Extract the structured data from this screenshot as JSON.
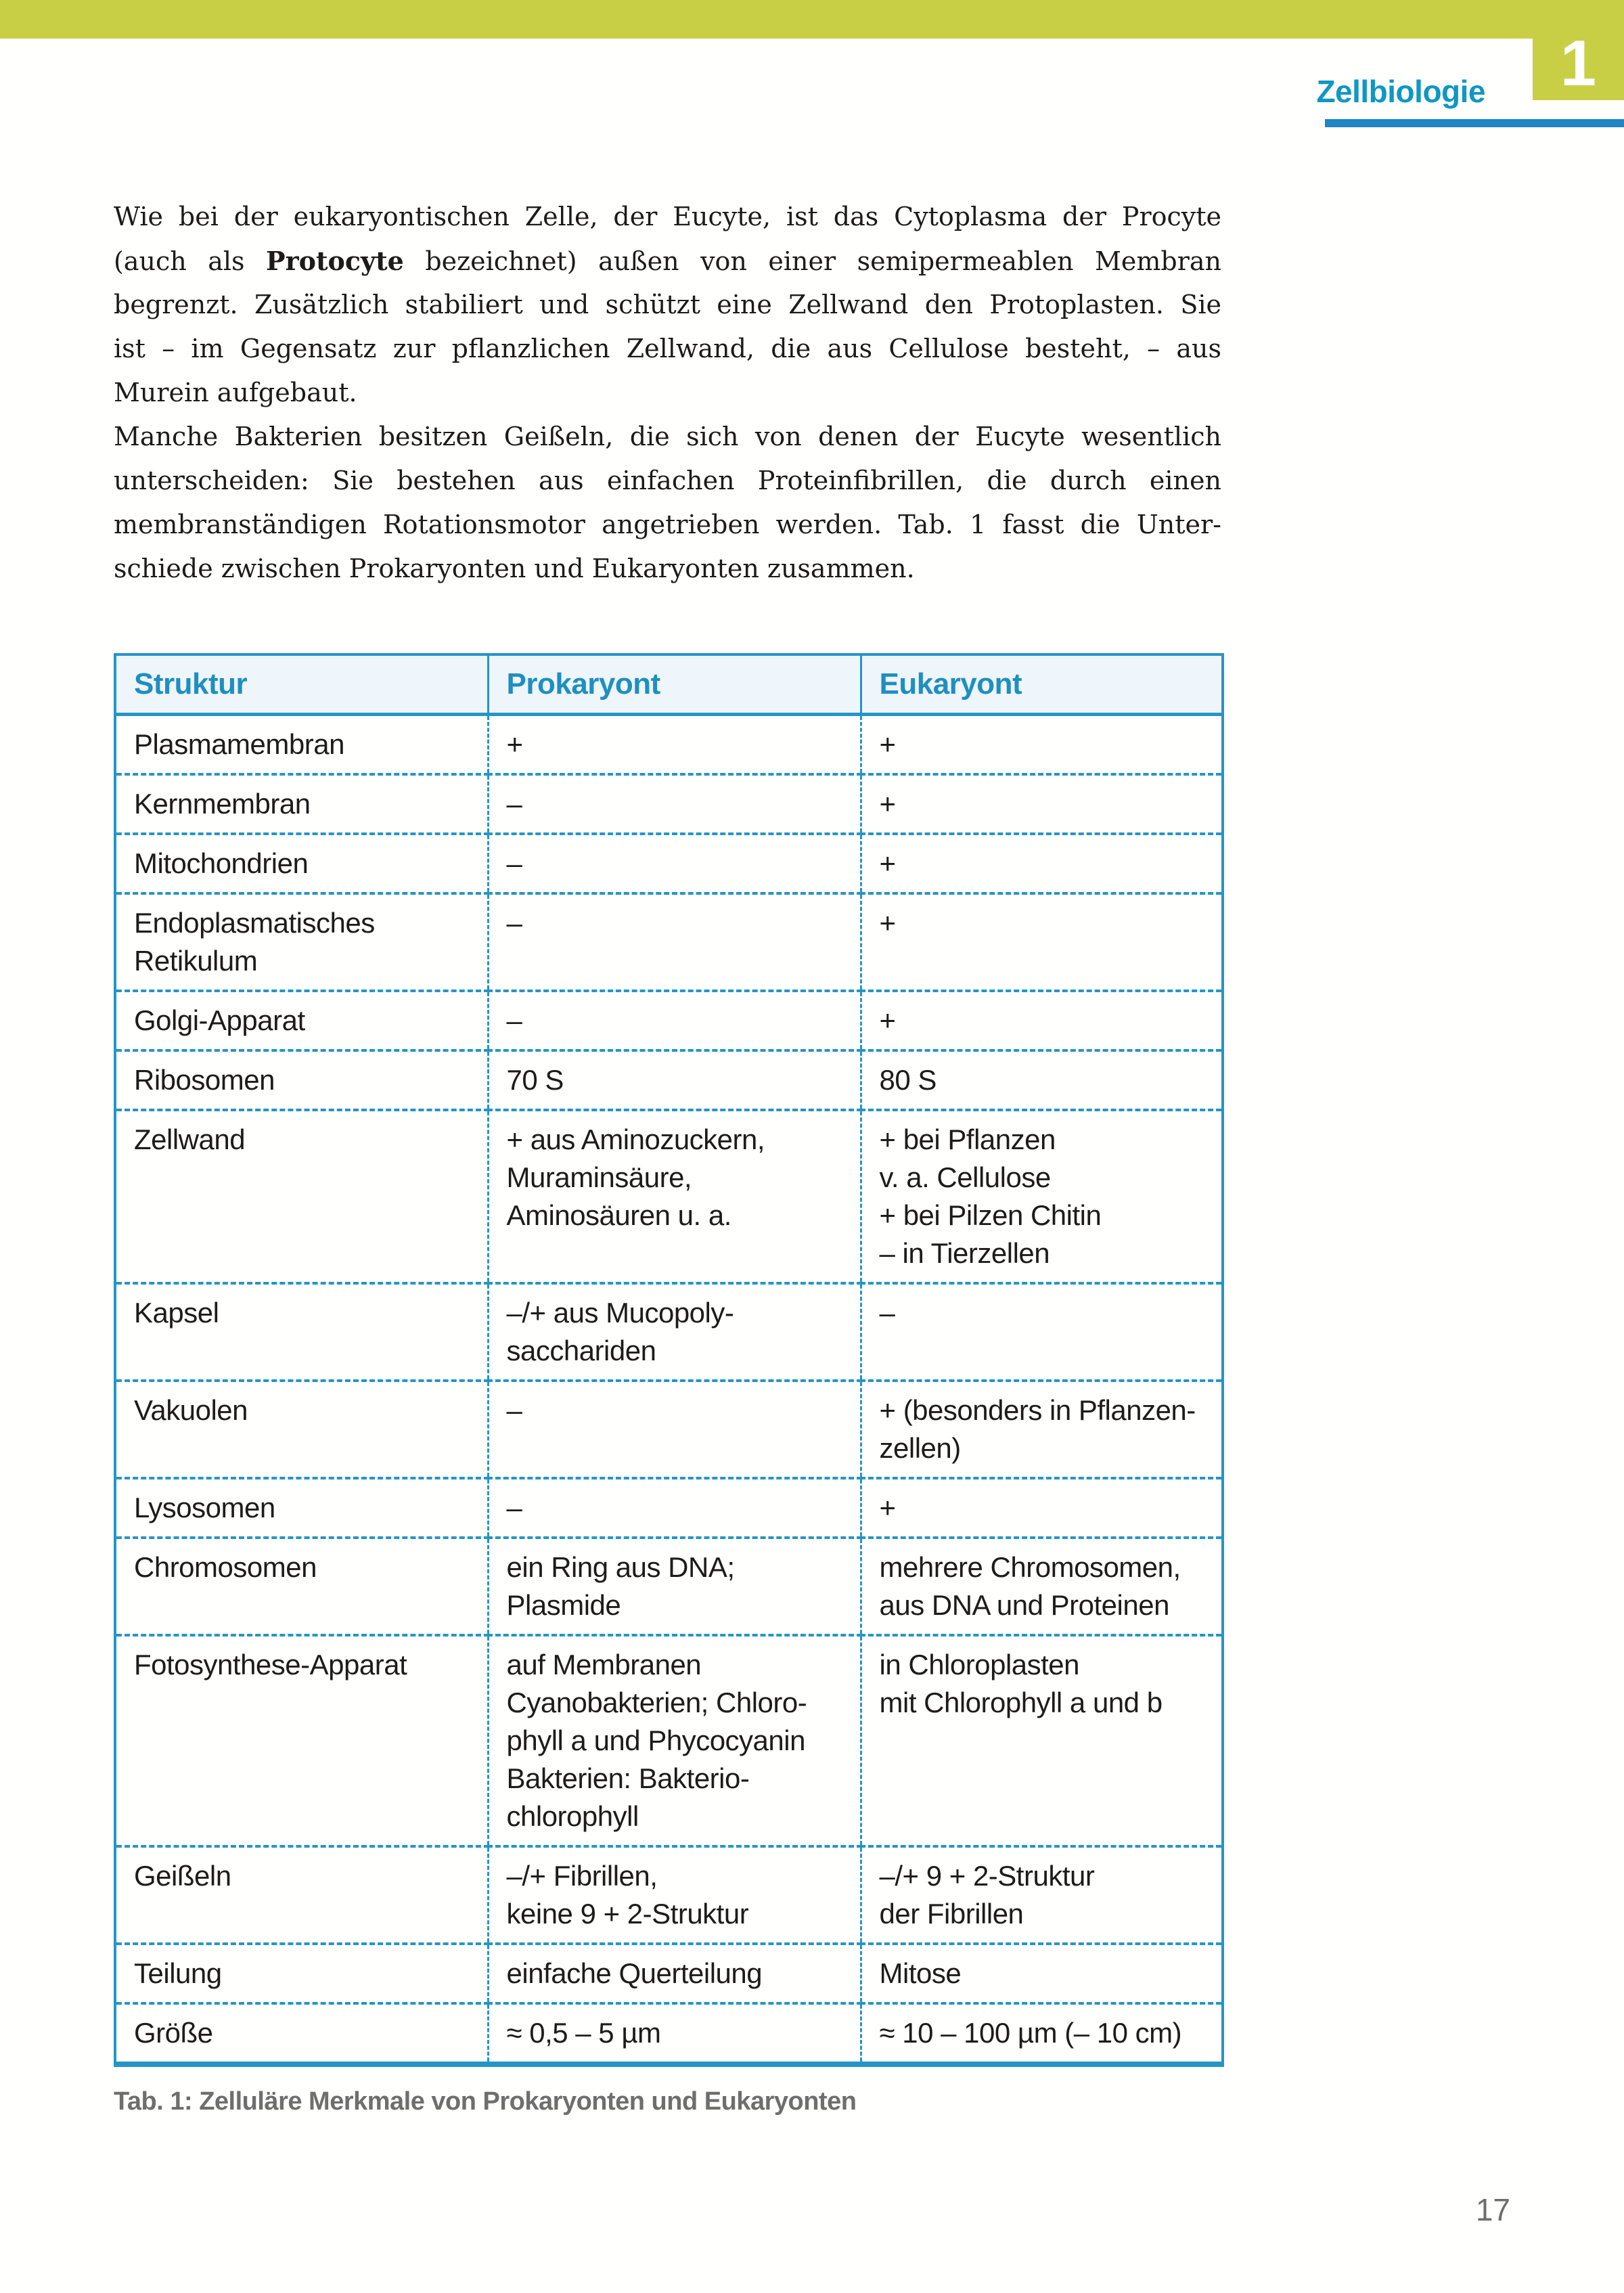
{
  "header": {
    "chapter_title": "Zellbiologie",
    "chapter_number": "1"
  },
  "paragraphs": [
    {
      "lines": [
        "Wie bei der eukaryontischen Zelle, der Eucyte, ist das Cytoplasma der Procyte",
        "(auch als **Protocyte** bezeichnet) außen von einer semipermeablen Membran",
        "begrenzt. Zusätzlich stabiliert und schützt eine Zellwand den Protoplasten. Sie",
        "ist – im Gegensatz zur pflanzlichen Zellwand, die aus Cellulose besteht, – aus",
        "Murein aufgebaut."
      ]
    },
    {
      "lines": [
        "Manche Bakterien besitzen Geißeln, die sich von denen der Eucyte wesentlich",
        "unterscheiden: Sie bestehen aus einfachen Proteinfibrillen, die durch einen",
        "membranständigen Rotationsmotor angetrieben werden. Tab. 1 fasst die Unter-",
        "schiede zwischen Prokaryonten und Eukaryonten zusammen."
      ]
    }
  ],
  "table": {
    "headers": [
      "Struktur",
      "Prokaryont",
      "Eukaryont"
    ],
    "rows": [
      {
        "struktur": "Plasmamembran",
        "prokaryont": "+",
        "eukaryont": "+"
      },
      {
        "struktur": "Kernmembran",
        "prokaryont": "–",
        "eukaryont": "+"
      },
      {
        "struktur": "Mitochondrien",
        "prokaryont": "–",
        "eukaryont": "+"
      },
      {
        "struktur": [
          "Endoplasmatisches",
          "Retikulum"
        ],
        "prokaryont": "–",
        "eukaryont": "+"
      },
      {
        "struktur": "Golgi-Apparat",
        "prokaryont": "–",
        "eukaryont": "+"
      },
      {
        "struktur": "Ribosomen",
        "prokaryont": "70 S",
        "eukaryont": "80 S"
      },
      {
        "struktur": "Zellwand",
        "prokaryont": [
          "+ aus Aminozuckern,",
          "Muraminsäure,",
          "Aminosäuren u. a."
        ],
        "eukaryont": [
          "+ bei Pflanzen",
          "v. a. Cellulose",
          "+ bei Pilzen Chitin",
          "– in Tierzellen"
        ]
      },
      {
        "struktur": "Kapsel",
        "prokaryont": [
          "–/+ aus Mucopoly-",
          "sacchariden"
        ],
        "eukaryont": "–"
      },
      {
        "struktur": "Vakuolen",
        "prokaryont": "–",
        "eukaryont": [
          "+ (besonders in Pflanzen-",
          "zellen)"
        ]
      },
      {
        "struktur": "Lysosomen",
        "prokaryont": "–",
        "eukaryont": "+"
      },
      {
        "struktur": "Chromosomen",
        "prokaryont": [
          "ein Ring aus DNA;",
          "Plasmide"
        ],
        "eukaryont": [
          "mehrere Chromosomen,",
          "aus DNA und Proteinen"
        ]
      },
      {
        "struktur": "Fotosynthese-Apparat",
        "prokaryont": [
          "auf Membranen",
          "Cyanobakterien; Chloro-",
          "phyll a und Phycocyanin",
          "Bakterien: Bakterio-",
          "chlorophyll"
        ],
        "eukaryont": [
          "in Chloroplasten",
          "mit Chlorophyll a und b"
        ]
      },
      {
        "struktur": "Geißeln",
        "prokaryont": [
          "–/+ Fibrillen,",
          "keine 9 + 2-Struktur"
        ],
        "eukaryont": [
          "–/+ 9 + 2-Struktur",
          "der Fibrillen"
        ]
      },
      {
        "struktur": "Teilung",
        "prokaryont": "einfache Querteilung",
        "eukaryont": "Mitose"
      },
      {
        "struktur": "Größe",
        "prokaryont": "≈ 0,5 – 5 µm",
        "eukaryont": "≈ 10 – 100 µm (– 10 cm)"
      }
    ]
  },
  "caption": "Tab. 1: Zelluläre Merkmale von Prokaryonten und Eukaryonten",
  "page": {
    "number": "17"
  },
  "colors": {
    "chapter_green": "#c8cf45",
    "heading_teal": "#1097c3",
    "rule_blue": "#1e86c4",
    "table_border": "#2595c6",
    "table_header_bg": "#eef5fb",
    "table_header_text": "#1e8fc0",
    "body_ink": "#1c1b1a",
    "caption_gray": "#6f6e6e"
  }
}
